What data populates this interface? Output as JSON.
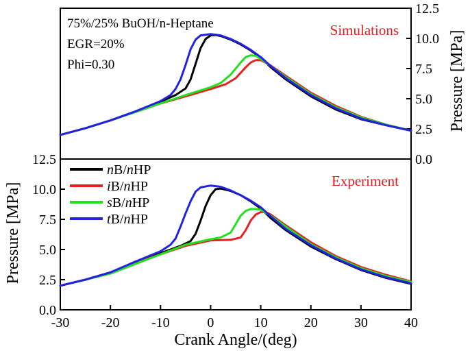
{
  "chart_data": [
    {
      "type": "line",
      "panel": "top",
      "title": "Simulations",
      "title_color": "#e02020",
      "annotations": [
        "75%/25% BuOH/n-Heptane",
        "EGR=20%",
        "Phi=0.30"
      ],
      "xlabel": "Crank Angle/(deg)",
      "ylabel": "Pressure [MPa]",
      "ylabel_side": "right",
      "xlim": [
        -30,
        40
      ],
      "ylim": [
        0,
        12.5
      ],
      "y_ticks": [
        "0.0",
        "2.5",
        "5.0",
        "7.5",
        "10.0",
        "12.5"
      ],
      "series": [
        {
          "name": "nB/nHP",
          "color": "#000000",
          "points": [
            [
              -30,
              2.0
            ],
            [
              -25,
              2.55
            ],
            [
              -20,
              3.2
            ],
            [
              -15,
              3.95
            ],
            [
              -10,
              4.75
            ],
            [
              -7,
              5.3
            ],
            [
              -5,
              5.85
            ],
            [
              -4,
              6.6
            ],
            [
              -3,
              7.9
            ],
            [
              -2,
              9.2
            ],
            [
              -1,
              9.95
            ],
            [
              0,
              10.25
            ],
            [
              1,
              10.28
            ],
            [
              2,
              10.2
            ],
            [
              4,
              9.9
            ],
            [
              6,
              9.5
            ],
            [
              8,
              9.0
            ],
            [
              10,
              8.4
            ],
            [
              12,
              7.6
            ],
            [
              15,
              6.6
            ],
            [
              20,
              5.2
            ],
            [
              25,
              4.1
            ],
            [
              30,
              3.3
            ],
            [
              35,
              2.8
            ],
            [
              40,
              2.35
            ]
          ]
        },
        {
          "name": "iB/nHP",
          "color": "#e82020",
          "points": [
            [
              -30,
              2.0
            ],
            [
              -25,
              2.55
            ],
            [
              -20,
              3.2
            ],
            [
              -15,
              3.9
            ],
            [
              -10,
              4.6
            ],
            [
              -5,
              5.2
            ],
            [
              0,
              5.8
            ],
            [
              3,
              6.2
            ],
            [
              5,
              6.7
            ],
            [
              7,
              7.6
            ],
            [
              8,
              8.0
            ],
            [
              9,
              8.2
            ],
            [
              10,
              8.2
            ],
            [
              12,
              7.75
            ],
            [
              15,
              6.9
            ],
            [
              20,
              5.5
            ],
            [
              25,
              4.4
            ],
            [
              30,
              3.5
            ],
            [
              35,
              2.85
            ],
            [
              40,
              2.35
            ]
          ]
        },
        {
          "name": "sB/nHP",
          "color": "#22e022",
          "points": [
            [
              -30,
              2.0
            ],
            [
              -25,
              2.55
            ],
            [
              -20,
              3.2
            ],
            [
              -15,
              3.9
            ],
            [
              -10,
              4.6
            ],
            [
              -5,
              5.3
            ],
            [
              0,
              5.95
            ],
            [
              2,
              6.3
            ],
            [
              4,
              7.0
            ],
            [
              6,
              8.0
            ],
            [
              7,
              8.45
            ],
            [
              8,
              8.6
            ],
            [
              9,
              8.55
            ],
            [
              10,
              8.3
            ],
            [
              12,
              7.7
            ],
            [
              15,
              6.8
            ],
            [
              20,
              5.4
            ],
            [
              25,
              4.3
            ],
            [
              30,
              3.45
            ],
            [
              35,
              2.85
            ],
            [
              40,
              2.35
            ]
          ]
        },
        {
          "name": "tB/nHP",
          "color": "#2222e0",
          "points": [
            [
              -30,
              2.0
            ],
            [
              -25,
              2.55
            ],
            [
              -20,
              3.2
            ],
            [
              -15,
              3.95
            ],
            [
              -10,
              4.8
            ],
            [
              -8,
              5.3
            ],
            [
              -7,
              5.8
            ],
            [
              -6,
              6.6
            ],
            [
              -5,
              7.8
            ],
            [
              -4,
              9.1
            ],
            [
              -3,
              9.9
            ],
            [
              -2,
              10.25
            ],
            [
              0,
              10.35
            ],
            [
              2,
              10.25
            ],
            [
              4,
              9.95
            ],
            [
              6,
              9.55
            ],
            [
              8,
              9.05
            ],
            [
              10,
              8.45
            ],
            [
              12,
              7.7
            ],
            [
              15,
              6.7
            ],
            [
              20,
              5.3
            ],
            [
              25,
              4.2
            ],
            [
              30,
              3.35
            ],
            [
              35,
              2.8
            ],
            [
              40,
              2.35
            ]
          ]
        }
      ]
    },
    {
      "type": "line",
      "panel": "bottom",
      "title": "Experiment",
      "title_color": "#e02020",
      "xlabel": "Crank Angle/(deg)",
      "ylabel": "Pressure [MPa]",
      "ylabel_side": "left",
      "xlim": [
        -30,
        40
      ],
      "ylim": [
        0,
        12.5
      ],
      "x_ticks": [
        "-30",
        "-20",
        "-10",
        "0",
        "10",
        "20",
        "30",
        "40"
      ],
      "y_ticks": [
        "0.0",
        "2.5",
        "5.0",
        "7.5",
        "10.0",
        "12.5"
      ],
      "legend_position": "top-left",
      "legend": [
        {
          "italic": "n",
          "mid": "B/",
          "italic2": "n",
          "rest": "HP",
          "color": "#000000"
        },
        {
          "italic": "i",
          "mid": "B/",
          "italic2": "n",
          "rest": "HP",
          "color": "#e82020"
        },
        {
          "italic": "s",
          "mid": "B/",
          "italic2": "n",
          "rest": "HP",
          "color": "#22e022"
        },
        {
          "italic": "t",
          "mid": "B/",
          "italic2": "n",
          "rest": "HP",
          "color": "#2222e0"
        }
      ],
      "series": [
        {
          "name": "nB/nHP",
          "color": "#000000",
          "points": [
            [
              -30,
              2.0
            ],
            [
              -25,
              2.5
            ],
            [
              -20,
              3.1
            ],
            [
              -15,
              3.9
            ],
            [
              -10,
              4.7
            ],
            [
              -6,
              5.3
            ],
            [
              -4,
              5.7
            ],
            [
              -3,
              6.3
            ],
            [
              -2,
              7.4
            ],
            [
              -1,
              8.6
            ],
            [
              0,
              9.5
            ],
            [
              1,
              10.0
            ],
            [
              2,
              10.05
            ],
            [
              4,
              9.85
            ],
            [
              6,
              9.5
            ],
            [
              8,
              9.0
            ],
            [
              10,
              8.4
            ],
            [
              12,
              7.6
            ],
            [
              15,
              6.6
            ],
            [
              20,
              5.25
            ],
            [
              25,
              4.2
            ],
            [
              30,
              3.3
            ],
            [
              35,
              2.65
            ],
            [
              40,
              2.15
            ]
          ]
        },
        {
          "name": "iB/nHP",
          "color": "#e82020",
          "points": [
            [
              -30,
              2.0
            ],
            [
              -25,
              2.5
            ],
            [
              -20,
              3.1
            ],
            [
              -15,
              3.9
            ],
            [
              -10,
              4.6
            ],
            [
              -5,
              5.3
            ],
            [
              0,
              5.75
            ],
            [
              4,
              5.8
            ],
            [
              6,
              6.0
            ],
            [
              7,
              6.6
            ],
            [
              8,
              7.4
            ],
            [
              9,
              7.9
            ],
            [
              10,
              8.1
            ],
            [
              11,
              8.1
            ],
            [
              12,
              7.9
            ],
            [
              15,
              7.0
            ],
            [
              20,
              5.6
            ],
            [
              25,
              4.45
            ],
            [
              30,
              3.55
            ],
            [
              35,
              2.9
            ],
            [
              40,
              2.35
            ]
          ]
        },
        {
          "name": "sB/nHP",
          "color": "#22e022",
          "points": [
            [
              -30,
              2.0
            ],
            [
              -25,
              2.5
            ],
            [
              -20,
              3.0
            ],
            [
              -15,
              3.8
            ],
            [
              -10,
              4.6
            ],
            [
              -5,
              5.4
            ],
            [
              0,
              5.85
            ],
            [
              2,
              6.0
            ],
            [
              4,
              6.4
            ],
            [
              5,
              7.1
            ],
            [
              6,
              7.8
            ],
            [
              7,
              8.2
            ],
            [
              8,
              8.35
            ],
            [
              9,
              8.35
            ],
            [
              10,
              8.3
            ],
            [
              12,
              7.8
            ],
            [
              15,
              6.9
            ],
            [
              20,
              5.45
            ],
            [
              25,
              4.35
            ],
            [
              30,
              3.45
            ],
            [
              35,
              2.8
            ],
            [
              40,
              2.3
            ]
          ]
        },
        {
          "name": "tB/nHP",
          "color": "#2222e0",
          "points": [
            [
              -30,
              2.0
            ],
            [
              -25,
              2.5
            ],
            [
              -20,
              3.1
            ],
            [
              -15,
              4.0
            ],
            [
              -10,
              4.85
            ],
            [
              -8,
              5.4
            ],
            [
              -7,
              5.9
            ],
            [
              -6,
              6.9
            ],
            [
              -5,
              8.0
            ],
            [
              -4,
              9.0
            ],
            [
              -3,
              9.8
            ],
            [
              -2,
              10.15
            ],
            [
              0,
              10.3
            ],
            [
              2,
              10.2
            ],
            [
              4,
              9.9
            ],
            [
              6,
              9.5
            ],
            [
              8,
              9.05
            ],
            [
              10,
              8.5
            ],
            [
              12,
              7.75
            ],
            [
              15,
              6.7
            ],
            [
              20,
              5.35
            ],
            [
              25,
              4.25
            ],
            [
              30,
              3.35
            ],
            [
              35,
              2.7
            ],
            [
              40,
              2.2
            ]
          ]
        }
      ]
    }
  ]
}
